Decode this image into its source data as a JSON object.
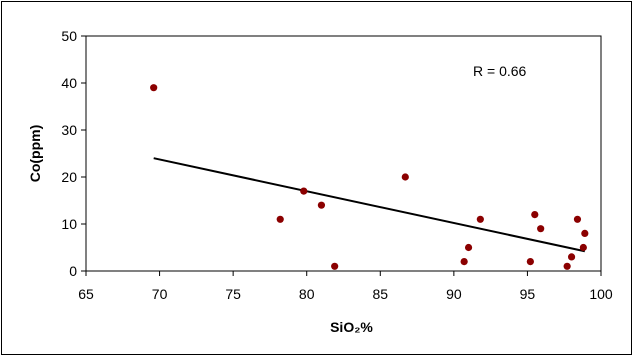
{
  "chart_data": {
    "type": "scatter",
    "title": "",
    "xlabel": "SiO₂%",
    "ylabel": "Co(ppm)",
    "xlim": [
      65,
      100
    ],
    "ylim": [
      0,
      50
    ],
    "xticks": [
      65,
      70,
      75,
      80,
      85,
      90,
      95,
      100
    ],
    "yticks": [
      0,
      10,
      20,
      30,
      40,
      50
    ],
    "grid": false,
    "point_color": "#8b0000",
    "line_color": "#000000",
    "points": [
      {
        "x": 69.6,
        "y": 39
      },
      {
        "x": 78.2,
        "y": 11
      },
      {
        "x": 79.8,
        "y": 17
      },
      {
        "x": 81.0,
        "y": 14
      },
      {
        "x": 81.9,
        "y": 1
      },
      {
        "x": 86.7,
        "y": 20
      },
      {
        "x": 90.7,
        "y": 2
      },
      {
        "x": 91.0,
        "y": 5
      },
      {
        "x": 91.8,
        "y": 11
      },
      {
        "x": 95.2,
        "y": 2
      },
      {
        "x": 95.5,
        "y": 12
      },
      {
        "x": 95.9,
        "y": 9
      },
      {
        "x": 97.7,
        "y": 1
      },
      {
        "x": 98.0,
        "y": 3
      },
      {
        "x": 98.4,
        "y": 11
      },
      {
        "x": 98.8,
        "y": 5
      },
      {
        "x": 98.9,
        "y": 8
      }
    ],
    "trendline": {
      "x": [
        69.6,
        98.9
      ],
      "y": [
        24,
        4.2
      ]
    },
    "annotation": "R = 0.66"
  }
}
